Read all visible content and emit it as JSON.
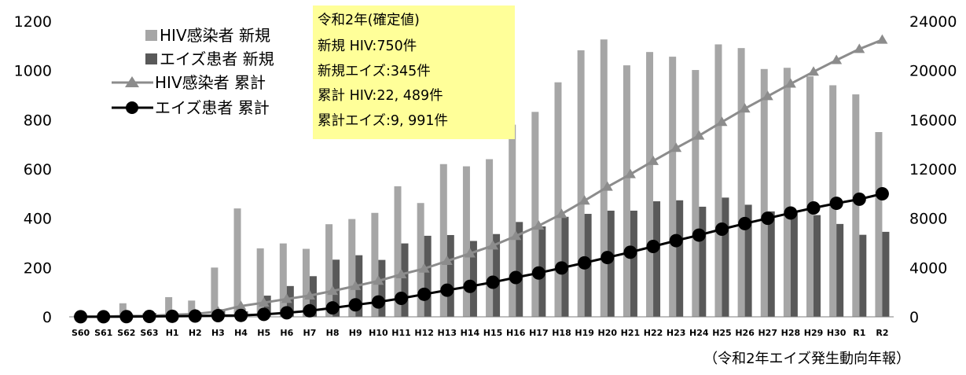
{
  "chart_data": {
    "type": "bar",
    "categories": [
      "S60",
      "S61",
      "S62",
      "S63",
      "H1",
      "H2",
      "H3",
      "H4",
      "H5",
      "H6",
      "H7",
      "H8",
      "H9",
      "H10",
      "H11",
      "H12",
      "H13",
      "H14",
      "H15",
      "H16",
      "H17",
      "H18",
      "H19",
      "H20",
      "H21",
      "H22",
      "H23",
      "H24",
      "H25",
      "H26",
      "H27",
      "H28",
      "H29",
      "H30",
      "R1",
      "R2"
    ],
    "series": [
      {
        "name": "HIV感染者 新規",
        "kind": "bar",
        "axis": "left",
        "color": "#a6a6a6",
        "values": [
          5,
          5,
          55,
          14,
          80,
          66,
          200,
          440,
          278,
          298,
          276,
          376,
          397,
          422,
          530,
          462,
          620,
          611,
          640,
          780,
          832,
          952,
          1082,
          1126,
          1021,
          1075,
          1056,
          1002,
          1106,
          1091,
          1006,
          1011,
          976,
          940,
          903,
          750
        ]
      },
      {
        "name": "エイズ患者 新規",
        "kind": "bar",
        "axis": "left",
        "color": "#595959",
        "values": [
          1,
          2,
          9,
          15,
          11,
          19,
          31,
          22,
          86,
          125,
          165,
          232,
          250,
          231,
          298,
          329,
          332,
          308,
          336,
          385,
          367,
          406,
          418,
          431,
          431,
          469,
          473,
          447,
          484,
          455,
          428,
          428,
          413,
          377,
          333,
          345
        ]
      },
      {
        "name": "HIV感染者 累計",
        "kind": "line",
        "axis": "right",
        "marker": "triangle",
        "color": "#8c8c8c",
        "values": [
          12,
          17,
          72,
          86,
          166,
          232,
          432,
          872,
          1150,
          1448,
          1724,
          2100,
          2497,
          2919,
          3449,
          3911,
          4531,
          5142,
          5782,
          6562,
          7394,
          8346,
          9428,
          10554,
          11575,
          12650,
          13706,
          14708,
          15814,
          16905,
          17911,
          18922,
          19898,
          20838,
          21741,
          22489
        ]
      },
      {
        "name": "エイズ患者 累計",
        "kind": "line",
        "axis": "right",
        "marker": "circle",
        "color": "#000000",
        "values": [
          6,
          8,
          17,
          32,
          43,
          62,
          93,
          115,
          201,
          326,
          491,
          723,
          973,
          1204,
          1502,
          1831,
          2163,
          2471,
          2807,
          3192,
          3559,
          3965,
          4383,
          4814,
          5245,
          5714,
          6187,
          6634,
          7118,
          7573,
          8001,
          8429,
          8842,
          9219,
          9552,
          9991
        ]
      }
    ],
    "y_left": {
      "min": 0,
      "max": 1200,
      "ticks": [
        0,
        200,
        400,
        600,
        800,
        1000,
        1200
      ]
    },
    "y_right": {
      "min": 0,
      "max": 24000,
      "ticks": [
        0,
        4000,
        8000,
        12000,
        16000,
        20000,
        24000
      ]
    },
    "legend_position": "top-left",
    "grid": false,
    "callout": {
      "lines": [
        "令和2年(確定値)",
        "新規  HIV:750件",
        "新規エイズ:345件",
        "累計  HIV:22, 489件",
        "累計エイズ:9, 991件"
      ],
      "background": "#ffff99"
    },
    "source_note": "（令和2年エイズ発生動向年報）"
  }
}
